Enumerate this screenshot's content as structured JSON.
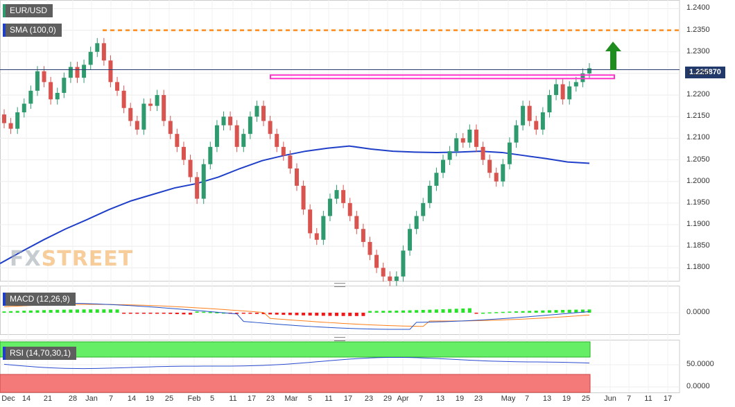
{
  "title_pair": "EUR/USD",
  "sma_label": "SMA (100,0)",
  "macd_label": "MACD (12,26,9)",
  "rsi_label": "RSI (14,70,30,1)",
  "price_tag": "1.225870",
  "logo": {
    "fx": "FX",
    "street": "STREET"
  },
  "colors": {
    "up": "#2e9a6e",
    "down": "#d9534f",
    "sma": "#1f3fc9",
    "resistance": "#ff33cc",
    "target": "#ff8c1a",
    "arrow": "#1f8c1f",
    "macd_line": "#1f4fc9",
    "signal_line": "#ff7f1a",
    "rsi_line": "#2a4bd0",
    "rsi_overbought": "#66ee66",
    "rsi_oversold": "#f47a7a"
  },
  "chart_data": {
    "type": "candlestick",
    "price_axis": {
      "ticks": [
        "1.2400",
        "1.2350",
        "1.2300",
        "1.2250",
        "1.2200",
        "1.2150",
        "1.2100",
        "1.2050",
        "1.2000",
        "1.1950",
        "1.1900",
        "1.1850",
        "1.1800"
      ],
      "ylim": [
        1.177,
        1.242
      ]
    },
    "macd_axis": {
      "ticks": [
        "0.0000"
      ]
    },
    "rsi_axis": {
      "ticks": [
        "50.0000",
        "0.0000"
      ]
    },
    "x_ticks": [
      "Dec",
      "14",
      "21",
      "28",
      "Jan",
      "7",
      "14",
      "19",
      "25",
      "Feb",
      "5",
      "11",
      "17",
      "23",
      "Mar",
      "5",
      "11",
      "17",
      "23",
      "29",
      "Apr",
      "7",
      "13",
      "19",
      "23",
      "May",
      "7",
      "13",
      "19",
      "25",
      "Jun",
      "7",
      "11",
      "17"
    ],
    "horizontal_levels": {
      "resistance": 1.2243,
      "target": 1.235,
      "last_price": 1.22587
    },
    "sma_100": [
      1.181,
      1.1838,
      1.1865,
      1.189,
      1.1912,
      1.1935,
      1.1955,
      1.197,
      1.1985,
      1.1995,
      1.201,
      1.203,
      1.2048,
      1.206,
      1.207,
      1.2077,
      1.2082,
      1.2075,
      1.207,
      1.2068,
      1.2067,
      1.2068,
      1.207,
      1.2067,
      1.206,
      1.2053,
      1.2045,
      1.2042
    ],
    "closes": [
      1.2135,
      1.2122,
      1.216,
      1.218,
      1.221,
      1.2255,
      1.223,
      1.219,
      1.2205,
      1.224,
      1.2265,
      1.224,
      1.227,
      1.23,
      1.232,
      1.228,
      1.223,
      1.221,
      1.217,
      1.214,
      1.212,
      1.218,
      1.2175,
      1.22,
      1.214,
      1.211,
      1.208,
      1.205,
      1.201,
      1.196,
      1.204,
      1.208,
      1.213,
      1.215,
      1.213,
      1.208,
      1.211,
      1.215,
      1.2175,
      1.214,
      1.211,
      1.208,
      1.206,
      1.203,
      1.199,
      1.1935,
      1.188,
      1.1865,
      1.192,
      1.196,
      1.198,
      1.195,
      1.192,
      1.189,
      1.186,
      1.183,
      1.18,
      1.178,
      1.177,
      1.178,
      1.184,
      1.189,
      1.192,
      1.195,
      1.199,
      1.202,
      1.205,
      1.207,
      1.21,
      1.209,
      1.212,
      1.208,
      1.205,
      1.202,
      1.2,
      1.204,
      1.209,
      1.213,
      1.2175,
      1.214,
      1.212,
      1.216,
      1.22,
      1.2225,
      1.219,
      1.222,
      1.223,
      1.225,
      1.2262
    ]
  }
}
